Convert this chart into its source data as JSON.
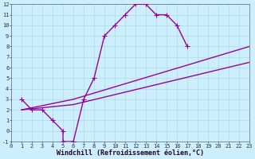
{
  "bg_color": "#cceeff",
  "line_color": "#990099",
  "line1_x": [
    1,
    2,
    3,
    4,
    5,
    5,
    6,
    7,
    8,
    9,
    10,
    11,
    12,
    13,
    14,
    15,
    16,
    17
  ],
  "line1_y": [
    3,
    2,
    2,
    1,
    0,
    -1,
    -1,
    3,
    5,
    9,
    10,
    11,
    12,
    12,
    11,
    11,
    10,
    8
  ],
  "line2_x": [
    1,
    6,
    23
  ],
  "line2_y": [
    2,
    3,
    8
  ],
  "line3_x": [
    1,
    6,
    23
  ],
  "line3_y": [
    2,
    2.5,
    6.5
  ],
  "xlim": [
    0,
    23
  ],
  "ylim": [
    -1,
    12
  ],
  "xticks": [
    0,
    1,
    2,
    3,
    4,
    5,
    6,
    7,
    8,
    9,
    10,
    11,
    12,
    13,
    14,
    15,
    16,
    17,
    18,
    19,
    20,
    21,
    22,
    23
  ],
  "yticks": [
    -1,
    0,
    1,
    2,
    3,
    4,
    5,
    6,
    7,
    8,
    9,
    10,
    11,
    12
  ],
  "xlabel": "Windchill (Refroidissement éolien,°C)",
  "linewidth": 1.0,
  "markersize": 3,
  "tick_fontsize": 5,
  "xlabel_fontsize": 6,
  "grid_color": "#aadddd"
}
